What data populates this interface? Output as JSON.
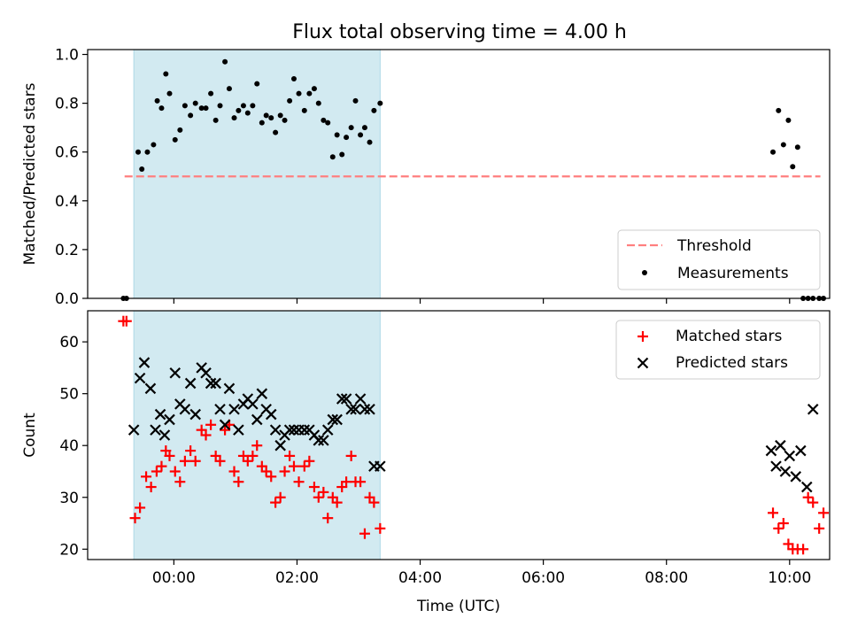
{
  "title": "Flux total observing time = 4.00 h",
  "colors": {
    "shade": "#add8e6",
    "threshold": "#ff7f7f",
    "measurement": "#000000",
    "matched": "#ff0000",
    "predicted": "#000000"
  },
  "chart_data": [
    {
      "type": "scatter",
      "ylabel": "Matched/Predicted stars",
      "xlabel": "",
      "xlim": [
        -1.4,
        10.65
      ],
      "ylim": [
        0.0,
        1.02
      ],
      "yticks": [
        0.0,
        0.2,
        0.4,
        0.6,
        0.8,
        1.0
      ],
      "ytick_labels": [
        "0.0",
        "0.2",
        "0.4",
        "0.6",
        "0.8",
        "1.0"
      ],
      "shaded_interval": [
        -0.65,
        3.35
      ],
      "threshold": {
        "name": "Threshold",
        "y": 0.5,
        "x": [
          -0.8,
          10.5
        ],
        "style": "dashed"
      },
      "legend": {
        "position": "lower right",
        "entries": [
          "Threshold",
          "Measurements"
        ]
      },
      "series": [
        {
          "name": "Measurements",
          "x": [
            -0.82,
            -0.77,
            -0.58,
            -0.52,
            -0.43,
            -0.33,
            -0.27,
            -0.2,
            -0.13,
            -0.07,
            0.02,
            0.1,
            0.18,
            0.27,
            0.35,
            0.45,
            0.52,
            0.6,
            0.68,
            0.75,
            0.83,
            0.9,
            0.98,
            1.05,
            1.13,
            1.2,
            1.28,
            1.35,
            1.43,
            1.5,
            1.58,
            1.65,
            1.73,
            1.8,
            1.88,
            1.95,
            2.03,
            2.12,
            2.2,
            2.28,
            2.35,
            2.43,
            2.5,
            2.58,
            2.65,
            2.73,
            2.8,
            2.88,
            2.95,
            3.03,
            3.1,
            3.18,
            3.25,
            3.35,
            9.73,
            9.82,
            9.9,
            9.98,
            10.05,
            10.13,
            10.22,
            10.3,
            10.38,
            10.48,
            10.55
          ],
          "y": [
            0.0,
            0.0,
            0.6,
            0.53,
            0.6,
            0.63,
            0.81,
            0.78,
            0.92,
            0.84,
            0.65,
            0.69,
            0.79,
            0.75,
            0.8,
            0.78,
            0.78,
            0.84,
            0.73,
            0.79,
            0.97,
            0.86,
            0.74,
            0.77,
            0.79,
            0.76,
            0.79,
            0.88,
            0.72,
            0.75,
            0.74,
            0.68,
            0.75,
            0.73,
            0.81,
            0.9,
            0.84,
            0.77,
            0.84,
            0.86,
            0.8,
            0.73,
            0.72,
            0.58,
            0.67,
            0.59,
            0.66,
            0.7,
            0.81,
            0.67,
            0.7,
            0.64,
            0.77,
            0.8,
            0.6,
            0.77,
            0.63,
            0.73,
            0.54,
            0.62,
            0.0,
            0.0,
            0.0,
            0.0,
            0.0
          ]
        }
      ]
    },
    {
      "type": "scatter",
      "ylabel": "Count",
      "xlabel": "Time (UTC)",
      "xlim": [
        -1.4,
        10.65
      ],
      "ylim": [
        18,
        66
      ],
      "xticks": [
        0,
        2,
        4,
        6,
        8,
        10
      ],
      "xtick_labels": [
        "00:00",
        "02:00",
        "04:00",
        "06:00",
        "08:00",
        "10:00"
      ],
      "yticks": [
        20,
        30,
        40,
        50,
        60
      ],
      "ytick_labels": [
        "20",
        "30",
        "40",
        "50",
        "60"
      ],
      "shaded_interval": [
        -0.65,
        3.35
      ],
      "legend": {
        "position": "upper right",
        "entries": [
          "Matched stars",
          "Predicted stars"
        ]
      },
      "series": [
        {
          "name": "Matched stars",
          "marker": "plus",
          "x": [
            -0.82,
            -0.77,
            -0.63,
            -0.55,
            -0.45,
            -0.37,
            -0.28,
            -0.2,
            -0.13,
            -0.07,
            0.02,
            0.1,
            0.18,
            0.27,
            0.35,
            0.45,
            0.52,
            0.6,
            0.68,
            0.75,
            0.83,
            0.9,
            0.98,
            1.05,
            1.13,
            1.2,
            1.28,
            1.35,
            1.43,
            1.5,
            1.58,
            1.65,
            1.73,
            1.8,
            1.88,
            1.95,
            2.03,
            2.12,
            2.2,
            2.28,
            2.35,
            2.43,
            2.5,
            2.58,
            2.65,
            2.73,
            2.8,
            2.88,
            2.95,
            3.03,
            3.1,
            3.18,
            3.25,
            3.35,
            9.73,
            9.82,
            9.9,
            9.98,
            10.05,
            10.13,
            10.22,
            10.3,
            10.38,
            10.48,
            10.55
          ],
          "y": [
            64,
            64,
            26,
            28,
            34,
            32,
            35,
            36,
            39,
            38,
            35,
            33,
            37,
            39,
            37,
            43,
            42,
            44,
            38,
            37,
            43,
            44,
            35,
            33,
            38,
            37,
            38,
            40,
            36,
            35,
            34,
            29,
            30,
            35,
            38,
            36,
            33,
            36,
            37,
            32,
            30,
            31,
            26,
            30,
            29,
            32,
            33,
            38,
            33,
            33,
            23,
            30,
            29,
            24,
            27,
            24,
            25,
            21,
            20,
            20,
            20,
            30,
            29,
            24,
            27
          ]
        },
        {
          "name": "Predicted stars",
          "marker": "x",
          "x": [
            -0.65,
            -0.55,
            -0.48,
            -0.38,
            -0.3,
            -0.22,
            -0.15,
            -0.07,
            0.02,
            0.1,
            0.18,
            0.27,
            0.35,
            0.45,
            0.52,
            0.6,
            0.68,
            0.75,
            0.83,
            0.9,
            0.98,
            1.05,
            1.13,
            1.2,
            1.28,
            1.35,
            1.43,
            1.5,
            1.58,
            1.65,
            1.73,
            1.8,
            1.88,
            1.95,
            2.03,
            2.12,
            2.2,
            2.28,
            2.35,
            2.43,
            2.5,
            2.58,
            2.65,
            2.73,
            2.8,
            2.88,
            2.95,
            3.03,
            3.1,
            3.18,
            3.25,
            3.35,
            9.7,
            9.78,
            9.85,
            9.93,
            10.0,
            10.1,
            10.18,
            10.28,
            10.38
          ],
          "y": [
            43,
            53,
            56,
            51,
            43,
            46,
            42,
            45,
            54,
            48,
            47,
            52,
            46,
            55,
            54,
            52,
            52,
            47,
            44,
            51,
            47,
            43,
            48,
            49,
            48,
            45,
            50,
            47,
            46,
            43,
            40,
            42,
            43,
            43,
            43,
            43,
            43,
            42,
            41,
            41,
            43,
            45,
            45,
            49,
            49,
            47,
            47,
            49,
            47,
            47,
            36,
            36,
            39,
            36,
            40,
            35,
            38,
            34,
            39,
            32,
            47
          ]
        }
      ]
    }
  ]
}
